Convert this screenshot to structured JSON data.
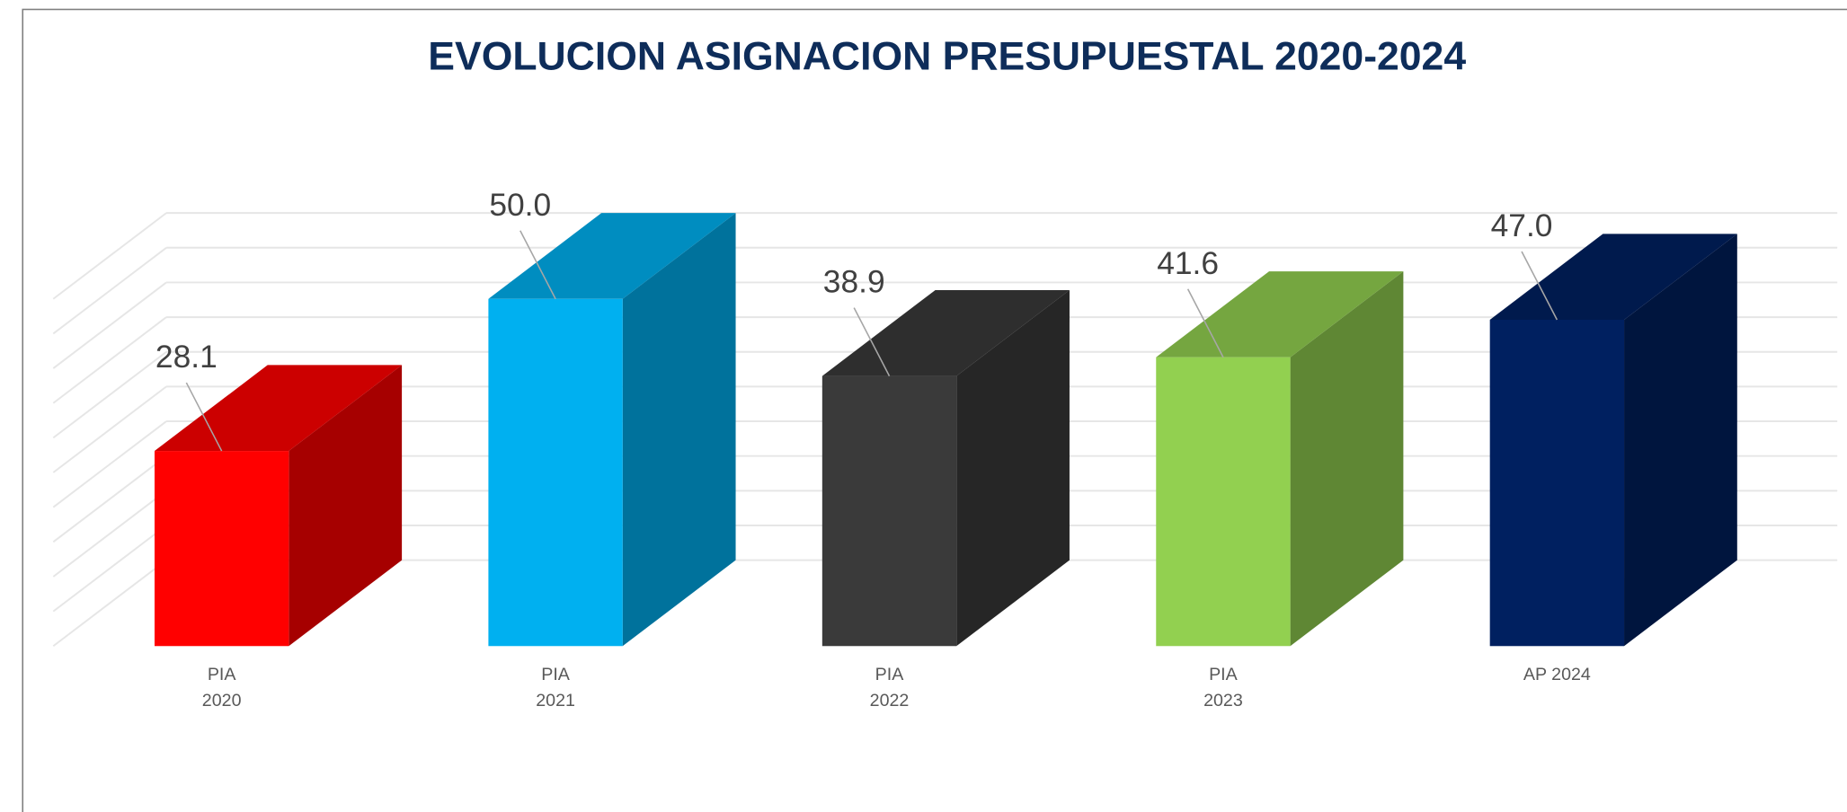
{
  "chart_data": {
    "type": "bar3d",
    "title": "EVOLUCION ASIGNACION PRESUPUESTAL 2020-2024",
    "categories": [
      [
        "PIA",
        "2020"
      ],
      [
        "PIA",
        "2021"
      ],
      [
        "PIA",
        "2022"
      ],
      [
        "PIA",
        "2023"
      ],
      [
        "AP 2024"
      ]
    ],
    "values": [
      28.1,
      50.0,
      38.9,
      41.6,
      47.0
    ],
    "value_labels": [
      "28.1",
      "50.0",
      "38.9",
      "41.6",
      "47.0"
    ],
    "colors": [
      "#ff0000",
      "#00b0f0",
      "#3a3a3a",
      "#92d050",
      "#002060"
    ],
    "ylim": [
      0,
      50
    ],
    "yticks": [
      0,
      5,
      10,
      15,
      20,
      25,
      30,
      35,
      40,
      45,
      50
    ],
    "grid": true
  }
}
